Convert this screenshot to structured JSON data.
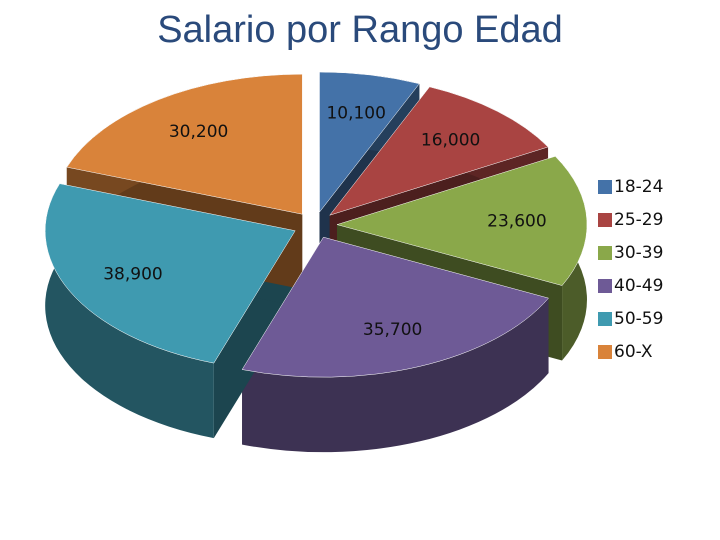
{
  "chart_data": {
    "type": "pie",
    "title": "Salario por Rango Edad",
    "categories": [
      "18-24",
      "25-29",
      "30-39",
      "40-49",
      "50-59",
      "60-X"
    ],
    "values": [
      10100,
      16000,
      23600,
      35700,
      38900,
      30200
    ],
    "value_labels": [
      "10,100",
      "16,000",
      "23,600",
      "35,700",
      "38,900",
      "30,200"
    ],
    "colors": [
      "#4472a8",
      "#a94442",
      "#8aa84a",
      "#6e5a96",
      "#3f9ab0",
      "#d9833a"
    ],
    "legend": "right"
  }
}
